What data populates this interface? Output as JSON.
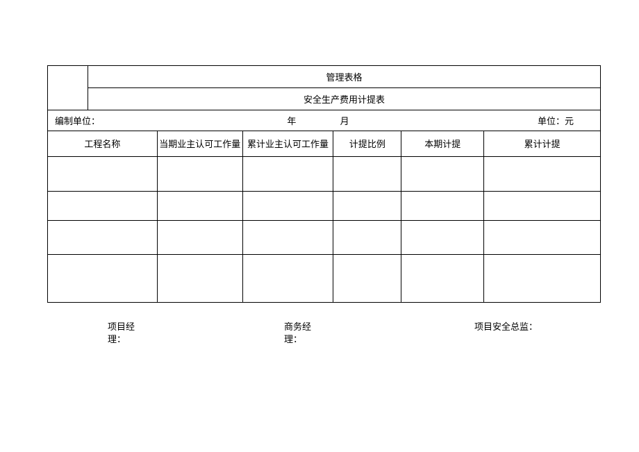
{
  "header": {
    "category": "管理表格",
    "form_title": "安全生产费用计提表"
  },
  "meta": {
    "org_label": "编制单位：",
    "year_label": "年",
    "month_label": "月",
    "unit_label": "单位：元"
  },
  "columns": [
    "工程名称",
    "当期业主认可工作量",
    "累计业主认可工作量",
    "计提比例",
    "本期计提",
    "累计计提"
  ],
  "rows": [
    [
      "",
      "",
      "",
      "",
      "",
      ""
    ],
    [
      "",
      "",
      "",
      "",
      "",
      ""
    ],
    [
      "",
      "",
      "",
      "",
      "",
      ""
    ],
    [
      "",
      "",
      "",
      "",
      "",
      ""
    ]
  ],
  "signatures": {
    "pm_line1": "项目经",
    "pm_line2": "理：",
    "biz_line1": "商务经",
    "biz_line2": "理：",
    "safety": "项目安全总监："
  }
}
